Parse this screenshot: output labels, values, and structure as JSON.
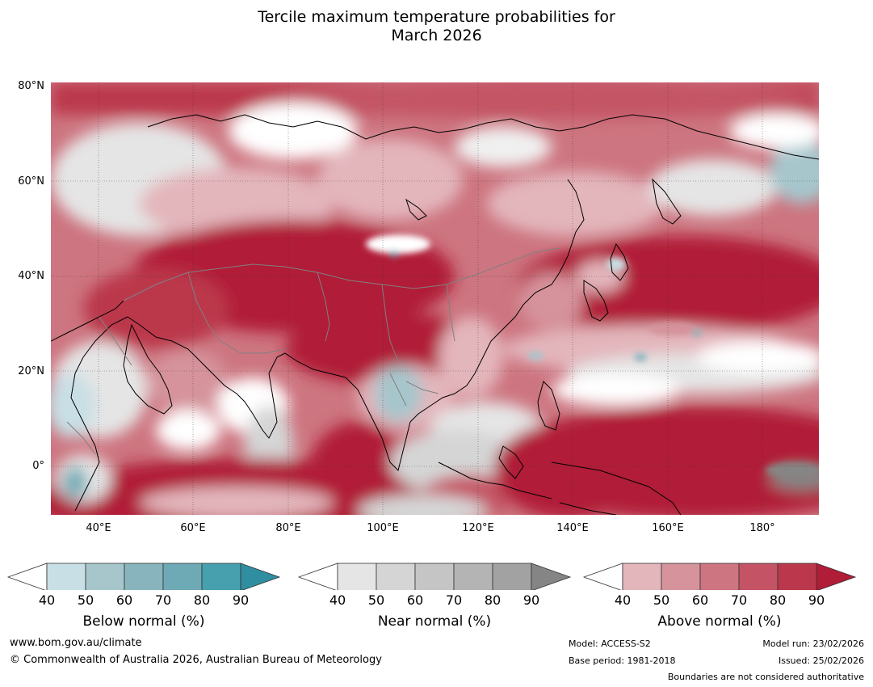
{
  "title_line1": "Tercile maximum temperature probabilities for",
  "title_line2": "March 2026",
  "map": {
    "lat_labels": [
      "80°N",
      "60°N",
      "40°N",
      "20°N",
      "0°"
    ],
    "lon_labels": [
      "40°E",
      "60°E",
      "80°E",
      "100°E",
      "120°E",
      "140°E",
      "160°E",
      "180°"
    ],
    "extent": {
      "lon_min": 30,
      "lon_max": 192,
      "lat_min": -10,
      "lat_max": 80
    }
  },
  "legends": [
    {
      "name": "below",
      "title": "Below normal (%)",
      "ticks": [
        "40",
        "50",
        "60",
        "70",
        "80",
        "90"
      ],
      "colors": [
        "#ffffff",
        "#c8dfe5",
        "#a6c6cc",
        "#88b5bd",
        "#6daab5",
        "#47a0ae",
        "#2f8ea0"
      ]
    },
    {
      "name": "near",
      "title": "Near normal (%)",
      "ticks": [
        "40",
        "50",
        "60",
        "70",
        "80",
        "90"
      ],
      "colors": [
        "#ffffff",
        "#e5e5e5",
        "#d5d5d5",
        "#c5c5c5",
        "#b4b4b4",
        "#a2a2a2",
        "#858585"
      ]
    },
    {
      "name": "above",
      "title": "Above normal (%)",
      "ticks": [
        "40",
        "50",
        "60",
        "70",
        "80",
        "90"
      ],
      "colors": [
        "#ffffff",
        "#e3b6bc",
        "#d6939b",
        "#cd7580",
        "#c45465",
        "#bb384c",
        "#b11c37"
      ]
    }
  ],
  "footer": {
    "website": "www.bom.gov.au/climate",
    "copyright": "© Commonwealth of Australia 2026, Australian Bureau of Meteorology",
    "model": "Model: ACCESS-S2",
    "base_period": "Base period: 1981-2018",
    "model_run": "Model run: 23/02/2026",
    "issued": "Issued: 25/02/2026",
    "disclaimer": "Boundaries are not considered authoritative"
  }
}
